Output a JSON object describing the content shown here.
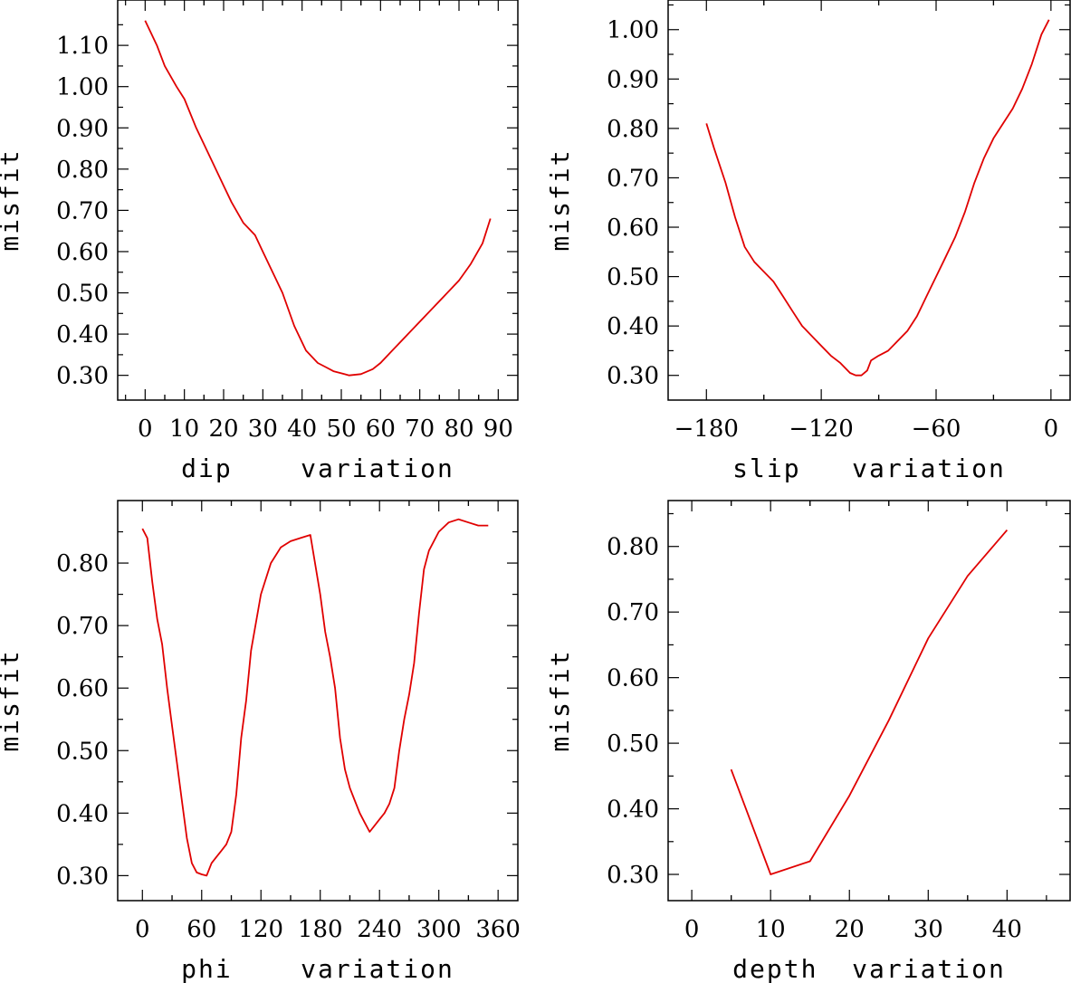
{
  "chart_data": [
    {
      "type": "line",
      "xlabel": "dip    variation",
      "ylabel": "misfit",
      "xlim": [
        -7,
        95
      ],
      "ylim": [
        0.24,
        1.21
      ],
      "xticks": [
        0,
        10,
        20,
        30,
        40,
        50,
        60,
        70,
        80,
        90
      ],
      "xtick_labels": [
        "0",
        "10",
        "20",
        "30",
        "40",
        "50",
        "60",
        "70",
        "80",
        "90"
      ],
      "yticks": [
        0.3,
        0.4,
        0.5,
        0.6,
        0.7,
        0.8,
        0.9,
        1.0,
        1.1
      ],
      "ytick_labels": [
        "0.30",
        "0.40",
        "0.50",
        "0.60",
        "0.70",
        "0.80",
        "0.90",
        "1.00",
        "1.10"
      ],
      "series": [
        {
          "color": "#e00000",
          "x": [
            0,
            3,
            5,
            8,
            10,
            13,
            16,
            20,
            22,
            25,
            28,
            30,
            33,
            35,
            38,
            41,
            44,
            46,
            48,
            50,
            52,
            55,
            58,
            60,
            63,
            66,
            70,
            73,
            76,
            80,
            83,
            86,
            88
          ],
          "y": [
            1.16,
            1.1,
            1.05,
            1.0,
            0.97,
            0.9,
            0.84,
            0.76,
            0.72,
            0.67,
            0.64,
            0.6,
            0.54,
            0.5,
            0.42,
            0.36,
            0.33,
            0.32,
            0.31,
            0.305,
            0.3,
            0.303,
            0.315,
            0.33,
            0.36,
            0.39,
            0.43,
            0.46,
            0.49,
            0.53,
            0.57,
            0.62,
            0.68
          ]
        }
      ]
    },
    {
      "type": "line",
      "xlabel": "slip   variation",
      "ylabel": "misfit",
      "xlim": [
        -200,
        10
      ],
      "ylim": [
        0.25,
        1.06
      ],
      "xticks": [
        -180,
        -120,
        -60,
        0
      ],
      "xtick_labels": [
        "−180",
        "−120",
        "−60",
        "0"
      ],
      "yticks": [
        0.3,
        0.4,
        0.5,
        0.6,
        0.7,
        0.8,
        0.9,
        1.0
      ],
      "ytick_labels": [
        "0.30",
        "0.40",
        "0.50",
        "0.60",
        "0.70",
        "0.80",
        "0.90",
        "1.00"
      ],
      "series": [
        {
          "color": "#e00000",
          "x": [
            -180,
            -176,
            -170,
            -165,
            -160,
            -155,
            -150,
            -145,
            -140,
            -135,
            -130,
            -125,
            -120,
            -115,
            -110,
            -105,
            -102,
            -99,
            -96,
            -94,
            -90,
            -85,
            -80,
            -75,
            -70,
            -65,
            -60,
            -55,
            -50,
            -45,
            -40,
            -35,
            -30,
            -25,
            -20,
            -15,
            -10,
            -5,
            -1
          ],
          "y": [
            0.81,
            0.76,
            0.69,
            0.62,
            0.56,
            0.53,
            0.51,
            0.49,
            0.46,
            0.43,
            0.4,
            0.38,
            0.36,
            0.34,
            0.325,
            0.305,
            0.3,
            0.3,
            0.31,
            0.33,
            0.34,
            0.35,
            0.37,
            0.39,
            0.42,
            0.46,
            0.5,
            0.54,
            0.58,
            0.63,
            0.69,
            0.74,
            0.78,
            0.81,
            0.84,
            0.88,
            0.93,
            0.99,
            1.02
          ]
        }
      ]
    },
    {
      "type": "line",
      "xlabel": "phi    variation",
      "ylabel": "misfit",
      "xlim": [
        -25,
        380
      ],
      "ylim": [
        0.26,
        0.9
      ],
      "xticks": [
        0,
        60,
        120,
        180,
        240,
        300,
        360
      ],
      "xtick_labels": [
        "0",
        "60",
        "120",
        "180",
        "240",
        "300",
        "360"
      ],
      "yticks": [
        0.3,
        0.4,
        0.5,
        0.6,
        0.7,
        0.8
      ],
      "ytick_labels": [
        "0.30",
        "0.40",
        "0.50",
        "0.60",
        "0.70",
        "0.80"
      ],
      "series": [
        {
          "color": "#e00000",
          "x": [
            0,
            5,
            10,
            15,
            20,
            25,
            30,
            35,
            40,
            45,
            50,
            55,
            60,
            65,
            70,
            75,
            80,
            85,
            90,
            95,
            100,
            105,
            110,
            120,
            130,
            140,
            150,
            160,
            170,
            180,
            185,
            190,
            195,
            200,
            205,
            210,
            215,
            220,
            225,
            230,
            235,
            240,
            245,
            250,
            255,
            260,
            265,
            270,
            275,
            280,
            285,
            290,
            300,
            310,
            320,
            330,
            340,
            345,
            350
          ],
          "y": [
            0.855,
            0.84,
            0.77,
            0.71,
            0.67,
            0.6,
            0.54,
            0.48,
            0.42,
            0.36,
            0.32,
            0.305,
            0.302,
            0.3,
            0.32,
            0.33,
            0.34,
            0.35,
            0.37,
            0.43,
            0.52,
            0.58,
            0.66,
            0.75,
            0.8,
            0.825,
            0.835,
            0.84,
            0.845,
            0.75,
            0.69,
            0.65,
            0.6,
            0.52,
            0.47,
            0.44,
            0.42,
            0.4,
            0.385,
            0.37,
            0.38,
            0.39,
            0.4,
            0.415,
            0.44,
            0.5,
            0.55,
            0.59,
            0.64,
            0.72,
            0.79,
            0.82,
            0.85,
            0.865,
            0.87,
            0.865,
            0.86,
            0.86,
            0.86
          ]
        }
      ]
    },
    {
      "type": "line",
      "xlabel": "depth  variation",
      "ylabel": "misfit",
      "xlim": [
        -3,
        48
      ],
      "ylim": [
        0.26,
        0.87
      ],
      "xticks": [
        0,
        10,
        20,
        30,
        40
      ],
      "xtick_labels": [
        "0",
        "10",
        "20",
        "30",
        "40"
      ],
      "yticks": [
        0.3,
        0.4,
        0.5,
        0.6,
        0.7,
        0.8
      ],
      "ytick_labels": [
        "0.30",
        "0.40",
        "0.50",
        "0.60",
        "0.70",
        "0.80"
      ],
      "series": [
        {
          "color": "#e00000",
          "x": [
            5,
            10,
            15,
            20,
            25,
            30,
            35,
            40
          ],
          "y": [
            0.46,
            0.3,
            0.32,
            0.42,
            0.535,
            0.66,
            0.755,
            0.825
          ]
        }
      ]
    }
  ]
}
